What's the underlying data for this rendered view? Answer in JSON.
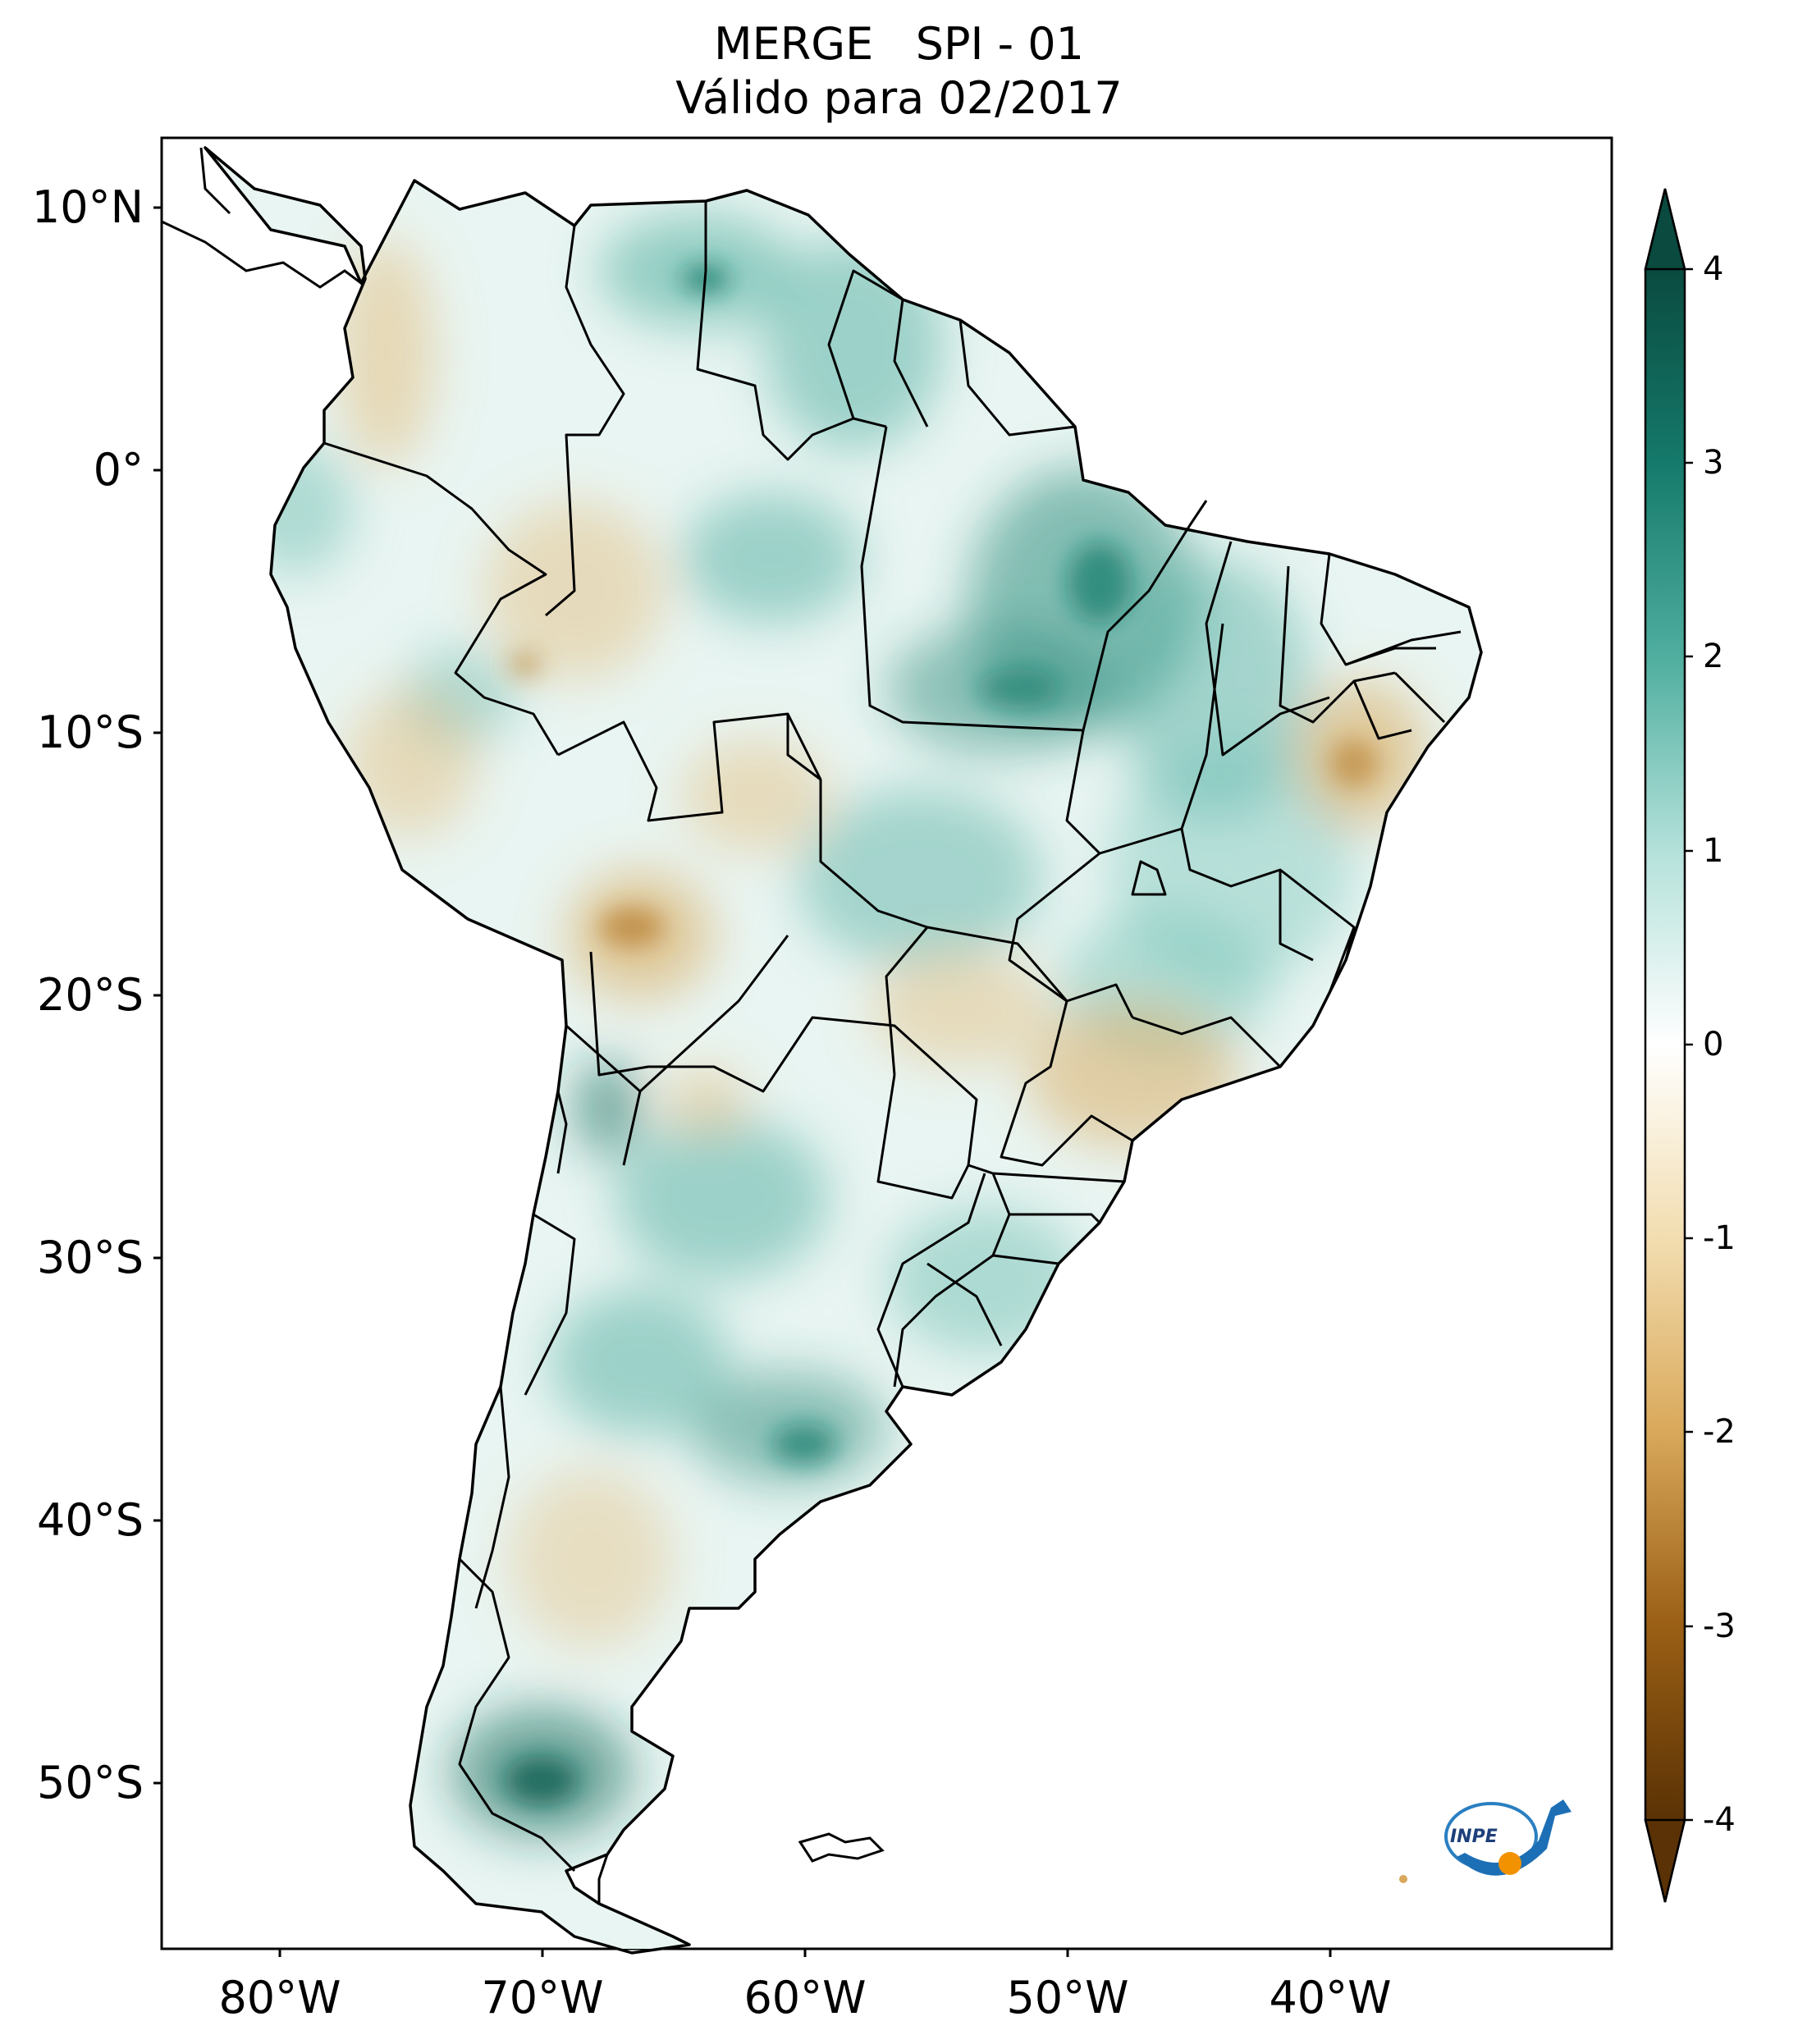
{
  "title": {
    "line1": "MERGE   SPI - 01",
    "line2": "Válido para 02/2017"
  },
  "axes": {
    "lat_ticks": [
      "10°N",
      "0°",
      "10°S",
      "20°S",
      "30°S",
      "40°S",
      "50°S"
    ],
    "lon_ticks": [
      "80°W",
      "70°W",
      "60°W",
      "50°W",
      "40°W"
    ]
  },
  "colorbar": {
    "ticks": [
      "4",
      "3",
      "2",
      "1",
      "0",
      "-1",
      "-2",
      "-3",
      "-4"
    ],
    "min": -4,
    "max": 4,
    "colors": {
      "dry_extreme": "#5a3205",
      "dry": "#c48a3a",
      "neutral": "#ffffff",
      "wet": "#6fc0b4",
      "wet_extreme": "#0a4a3f"
    }
  },
  "logo": {
    "text": "INPE"
  }
}
